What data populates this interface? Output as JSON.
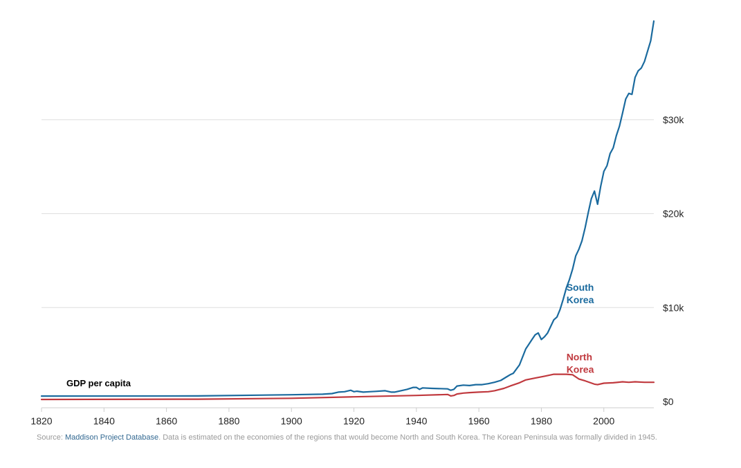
{
  "chart_data": {
    "type": "line",
    "title": "GDP per capita",
    "xlim": [
      1820,
      2016
    ],
    "ylim": [
      0,
      41000
    ],
    "x_ticks": [
      1820,
      1840,
      1860,
      1880,
      1900,
      1920,
      1940,
      1960,
      1980,
      2000
    ],
    "y_ticks": [
      {
        "value": 0,
        "label": "$0"
      },
      {
        "value": 10000,
        "label": "$10k"
      },
      {
        "value": 20000,
        "label": "$20k"
      },
      {
        "value": 30000,
        "label": "$30k"
      }
    ],
    "series": [
      {
        "name": "South Korea",
        "label_lines": [
          "South",
          "Korea"
        ],
        "label_anchor": {
          "x": 1996,
          "y": 11800
        },
        "color": "#1a6a9e",
        "points": [
          [
            1820,
            580
          ],
          [
            1870,
            600
          ],
          [
            1900,
            720
          ],
          [
            1910,
            780
          ],
          [
            1913,
            850
          ],
          [
            1915,
            1000
          ],
          [
            1917,
            1050
          ],
          [
            1919,
            1200
          ],
          [
            1920,
            1050
          ],
          [
            1921,
            1100
          ],
          [
            1923,
            1000
          ],
          [
            1925,
            1050
          ],
          [
            1927,
            1080
          ],
          [
            1930,
            1150
          ],
          [
            1932,
            1000
          ],
          [
            1933,
            1000
          ],
          [
            1935,
            1150
          ],
          [
            1937,
            1300
          ],
          [
            1939,
            1500
          ],
          [
            1940,
            1500
          ],
          [
            1941,
            1300
          ],
          [
            1942,
            1450
          ],
          [
            1945,
            1400
          ],
          [
            1950,
            1350
          ],
          [
            1951,
            1200
          ],
          [
            1952,
            1300
          ],
          [
            1953,
            1650
          ],
          [
            1955,
            1750
          ],
          [
            1957,
            1700
          ],
          [
            1959,
            1800
          ],
          [
            1961,
            1800
          ],
          [
            1963,
            1900
          ],
          [
            1965,
            2050
          ],
          [
            1967,
            2250
          ],
          [
            1969,
            2650
          ],
          [
            1970,
            2850
          ],
          [
            1971,
            3000
          ],
          [
            1973,
            3900
          ],
          [
            1975,
            5600
          ],
          [
            1977,
            6600
          ],
          [
            1978,
            7100
          ],
          [
            1979,
            7300
          ],
          [
            1980,
            6600
          ],
          [
            1981,
            6900
          ],
          [
            1982,
            7300
          ],
          [
            1983,
            8000
          ],
          [
            1984,
            8700
          ],
          [
            1985,
            9000
          ],
          [
            1986,
            9800
          ],
          [
            1987,
            10900
          ],
          [
            1988,
            12100
          ],
          [
            1989,
            13000
          ],
          [
            1990,
            14100
          ],
          [
            1991,
            15500
          ],
          [
            1992,
            16200
          ],
          [
            1993,
            17100
          ],
          [
            1994,
            18500
          ],
          [
            1995,
            20100
          ],
          [
            1996,
            21600
          ],
          [
            1997,
            22400
          ],
          [
            1998,
            21000
          ],
          [
            1999,
            22900
          ],
          [
            2000,
            24500
          ],
          [
            2001,
            25100
          ],
          [
            2002,
            26400
          ],
          [
            2003,
            27000
          ],
          [
            2004,
            28300
          ],
          [
            2005,
            29300
          ],
          [
            2006,
            30700
          ],
          [
            2007,
            32200
          ],
          [
            2008,
            32800
          ],
          [
            2009,
            32700
          ],
          [
            2010,
            34500
          ],
          [
            2011,
            35200
          ],
          [
            2012,
            35500
          ],
          [
            2013,
            36200
          ],
          [
            2014,
            37300
          ],
          [
            2015,
            38400
          ],
          [
            2016,
            40500
          ]
        ]
      },
      {
        "name": "North Korea",
        "label_lines": [
          "North",
          "Korea"
        ],
        "label_anchor": {
          "x": 1996,
          "y": 4400
        },
        "color": "#c0393e",
        "points": [
          [
            1820,
            220
          ],
          [
            1870,
            250
          ],
          [
            1900,
            350
          ],
          [
            1920,
            500
          ],
          [
            1940,
            650
          ],
          [
            1950,
            750
          ],
          [
            1951,
            600
          ],
          [
            1952,
            650
          ],
          [
            1953,
            800
          ],
          [
            1955,
            900
          ],
          [
            1957,
            950
          ],
          [
            1960,
            1000
          ],
          [
            1963,
            1050
          ],
          [
            1965,
            1150
          ],
          [
            1968,
            1400
          ],
          [
            1970,
            1650
          ],
          [
            1973,
            2000
          ],
          [
            1975,
            2300
          ],
          [
            1978,
            2500
          ],
          [
            1981,
            2700
          ],
          [
            1984,
            2900
          ],
          [
            1986,
            2900
          ],
          [
            1988,
            2900
          ],
          [
            1990,
            2850
          ],
          [
            1992,
            2400
          ],
          [
            1994,
            2200
          ],
          [
            1997,
            1850
          ],
          [
            1998,
            1800
          ],
          [
            2000,
            1950
          ],
          [
            2003,
            2000
          ],
          [
            2006,
            2100
          ],
          [
            2008,
            2050
          ],
          [
            2010,
            2100
          ],
          [
            2013,
            2050
          ],
          [
            2016,
            2050
          ]
        ]
      }
    ]
  },
  "source": {
    "prefix": "Source: ",
    "link_text": "Maddison Project Database",
    "suffix": ". Data is estimated on the economies of the regions that would become North and South Korea. The Korean Peninsula was formally divided in 1945."
  }
}
